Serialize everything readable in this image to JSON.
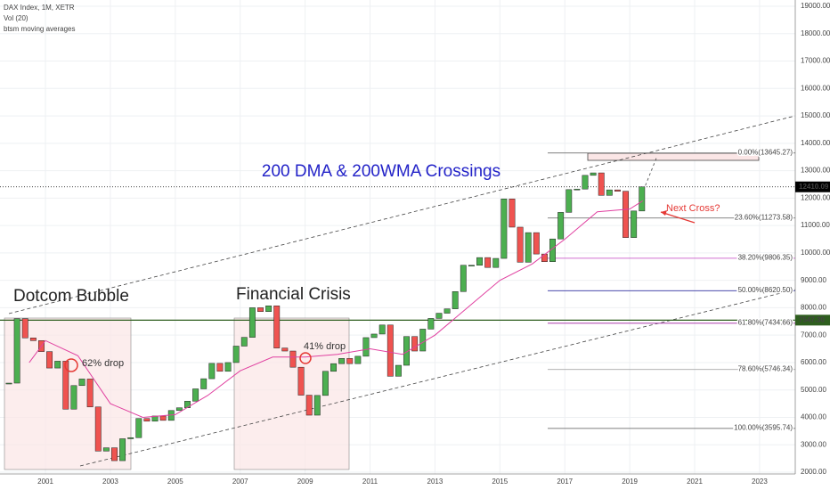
{
  "chart_data": {
    "type": "candlestick",
    "legend_lines": [
      "DAX Index, 1M, XETR",
      "Vol (20)",
      "btsm moving averages"
    ],
    "title": "200 DMA & 200WMA Crossings",
    "annotations": [
      "Dotcom Bubble",
      "Financial Crisis",
      "62% drop",
      "41% drop",
      "Next Cross?"
    ],
    "x": [
      1999.875,
      2000.125,
      2000.375,
      2000.625,
      2000.875,
      2001.125,
      2001.375,
      2001.625,
      2001.875,
      2002.125,
      2002.375,
      2002.625,
      2002.875,
      2003.125,
      2003.375,
      2003.625,
      2003.875,
      2004.125,
      2004.375,
      2004.625,
      2004.875,
      2005.125,
      2005.375,
      2005.625,
      2005.875,
      2006.125,
      2006.375,
      2006.625,
      2006.875,
      2007.125,
      2007.375,
      2007.625,
      2007.875,
      2008.125,
      2008.375,
      2008.625,
      2008.875,
      2009.125,
      2009.375,
      2009.625,
      2009.875,
      2010.125,
      2010.375,
      2010.625,
      2010.875,
      2011.125,
      2011.375,
      2011.625,
      2011.875,
      2012.125,
      2012.375,
      2012.625,
      2012.875,
      2013.125,
      2013.375,
      2013.625,
      2013.875,
      2014.125,
      2014.375,
      2014.625,
      2014.875,
      2015.125,
      2015.375,
      2015.625,
      2015.875,
      2016.125,
      2016.375,
      2016.625,
      2016.875,
      2017.125,
      2017.375,
      2017.625,
      2017.875,
      2018.125,
      2018.375,
      2018.625,
      2018.875,
      2019.125,
      2019.375
    ],
    "values": [
      5250,
      7600,
      6900,
      6800,
      6400,
      5800,
      6050,
      4300,
      5160,
      5400,
      4380,
      2770,
      2890,
      2420,
      3220,
      3260,
      3960,
      3860,
      4050,
      3890,
      4250,
      4350,
      4590,
      5040,
      5410,
      5970,
      5680,
      6000,
      6600,
      6920,
      8000,
      7860,
      8070,
      6530,
      6420,
      5830,
      4810,
      4080,
      4800,
      5680,
      5960,
      6150,
      5960,
      6230,
      6910,
      7040,
      7370,
      5500,
      5900,
      6950,
      6420,
      7220,
      7610,
      7800,
      7960,
      8590,
      9550,
      9550,
      9830,
      9470,
      9800,
      11970,
      10940,
      9660,
      10740,
      9960,
      9680,
      10510,
      11480,
      12310,
      12330,
      12830,
      12920,
      12100,
      12300,
      12250,
      10560,
      11530,
      12410
    ],
    "moving_average": {
      "color": "#e040a0",
      "x": [
        2000.5,
        2001,
        2002,
        2003,
        2004,
        2005,
        2006,
        2007,
        2008,
        2009,
        2010,
        2011,
        2012,
        2013,
        2014,
        2015,
        2016,
        2017,
        2018,
        2019,
        2019.4
      ],
      "values": [
        6000,
        6800,
        6250,
        4500,
        4000,
        4100,
        4800,
        5700,
        6200,
        6200,
        6300,
        6500,
        6300,
        7000,
        8000,
        9000,
        9600,
        10500,
        11500,
        11600,
        11900
      ]
    },
    "up_color": "#4caf50",
    "down_color": "#ef5350",
    "xlim": [
      1999.6,
      2024.1
    ],
    "ylim": [
      1935,
      19228
    ],
    "xticks": [
      2001,
      2003,
      2005,
      2007,
      2009,
      2011,
      2013,
      2015,
      2017,
      2019,
      2021,
      2023
    ],
    "yticks": [
      {
        "value": 2000,
        "label": "2000.00"
      },
      {
        "value": 3000,
        "label": "3000.00"
      },
      {
        "value": 4000,
        "label": "4000.00"
      },
      {
        "value": 5000,
        "label": "5000.00"
      },
      {
        "value": 6000,
        "label": "6000.00"
      },
      {
        "value": 7000,
        "label": "7000.00"
      },
      {
        "value": 8000,
        "label": "8000.00"
      },
      {
        "value": 9000,
        "label": "9000.00"
      },
      {
        "value": 10000,
        "label": "10000.00"
      },
      {
        "value": 11000,
        "label": "11000.00"
      },
      {
        "value": 12000,
        "label": "12000.00"
      },
      {
        "value": 13000,
        "label": "13000.00"
      },
      {
        "value": 14000,
        "label": "14000.00"
      },
      {
        "value": 15000,
        "label": "15000.00"
      },
      {
        "value": 16000,
        "label": "16000.00"
      },
      {
        "value": 17000,
        "label": "17000.00"
      },
      {
        "value": 18000,
        "label": "18000.00"
      },
      {
        "value": 19000,
        "label": "19000.00"
      }
    ],
    "fib_levels": [
      {
        "value": 13645.27,
        "label": "0.00%(13645.27)",
        "color": "#555555"
      },
      {
        "value": 11273.58,
        "label": "23.60%(11273.58)",
        "color": "#777777"
      },
      {
        "value": 9806.35,
        "label": "38.20%(9806.35)",
        "color": "#c040c0"
      },
      {
        "value": 8620.5,
        "label": "50.00%(8620.50)",
        "color": "#3030a0"
      },
      {
        "value": 7434.66,
        "label": "61.80%(7434.66)",
        "color": "#a020a0"
      },
      {
        "value": 5746.34,
        "label": "78.60%(5746.34)",
        "color": "#999999"
      },
      {
        "value": 3595.74,
        "label": "100.00%(3595.74)",
        "color": "#555555"
      }
    ],
    "price_lines": [
      {
        "value": 12410.09,
        "label": "12410.09",
        "color": "#000000"
      },
      {
        "value": 7547.3,
        "label": "7547.30",
        "color": "#2e5e1e"
      }
    ]
  }
}
